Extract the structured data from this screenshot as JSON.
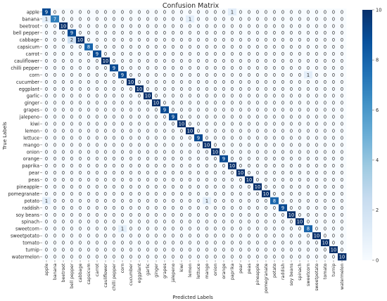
{
  "chart_data": {
    "type": "heatmap",
    "title": "Confusion Matrix",
    "xlabel": "Predicted Labels",
    "ylabel": "True Labels",
    "labels": [
      "apple",
      "banana",
      "beetroot",
      "bell pepper",
      "cabbage",
      "capsicum",
      "carrot",
      "cauliflower",
      "chilli pepper",
      "corn",
      "cucumber",
      "eggplant",
      "garlic",
      "ginger",
      "grapes",
      "jalepeno",
      "kiwi",
      "lemon",
      "lettuce",
      "mango",
      "onion",
      "orange",
      "paprika",
      "pear",
      "peas",
      "pineapple",
      "pomegranate",
      "potato",
      "raddish",
      "soy beans",
      "spinach",
      "sweetcorn",
      "sweetpotato",
      "tomato",
      "turnip",
      "watermelon"
    ],
    "diagonal": [
      9,
      7,
      10,
      9,
      10,
      8,
      9,
      10,
      9,
      9,
      10,
      10,
      10,
      10,
      9,
      9,
      10,
      10,
      9,
      10,
      10,
      9,
      10,
      10,
      10,
      10,
      10,
      8,
      9,
      10,
      10,
      8,
      10,
      10,
      10,
      10
    ],
    "off_diagonal": [
      {
        "row": 0,
        "col": 22,
        "value": 1
      },
      {
        "row": 1,
        "col": 0,
        "value": 1
      },
      {
        "row": 1,
        "col": 17,
        "value": 1
      },
      {
        "row": 4,
        "col": 3,
        "value": 2
      },
      {
        "row": 9,
        "col": 31,
        "value": 1
      },
      {
        "row": 27,
        "col": 0,
        "value": 1
      },
      {
        "row": 27,
        "col": 19,
        "value": 1
      },
      {
        "row": 31,
        "col": 9,
        "value": 1
      }
    ],
    "colorbar": {
      "min": 0,
      "max": 10,
      "ticks": [
        0,
        2,
        4,
        6,
        8,
        10
      ]
    },
    "colormap": [
      "#f7fbff",
      "#deebf7",
      "#c6dbef",
      "#9ecae1",
      "#6baed6",
      "#4292c6",
      "#2171b5",
      "#08519c",
      "#08306b"
    ]
  }
}
